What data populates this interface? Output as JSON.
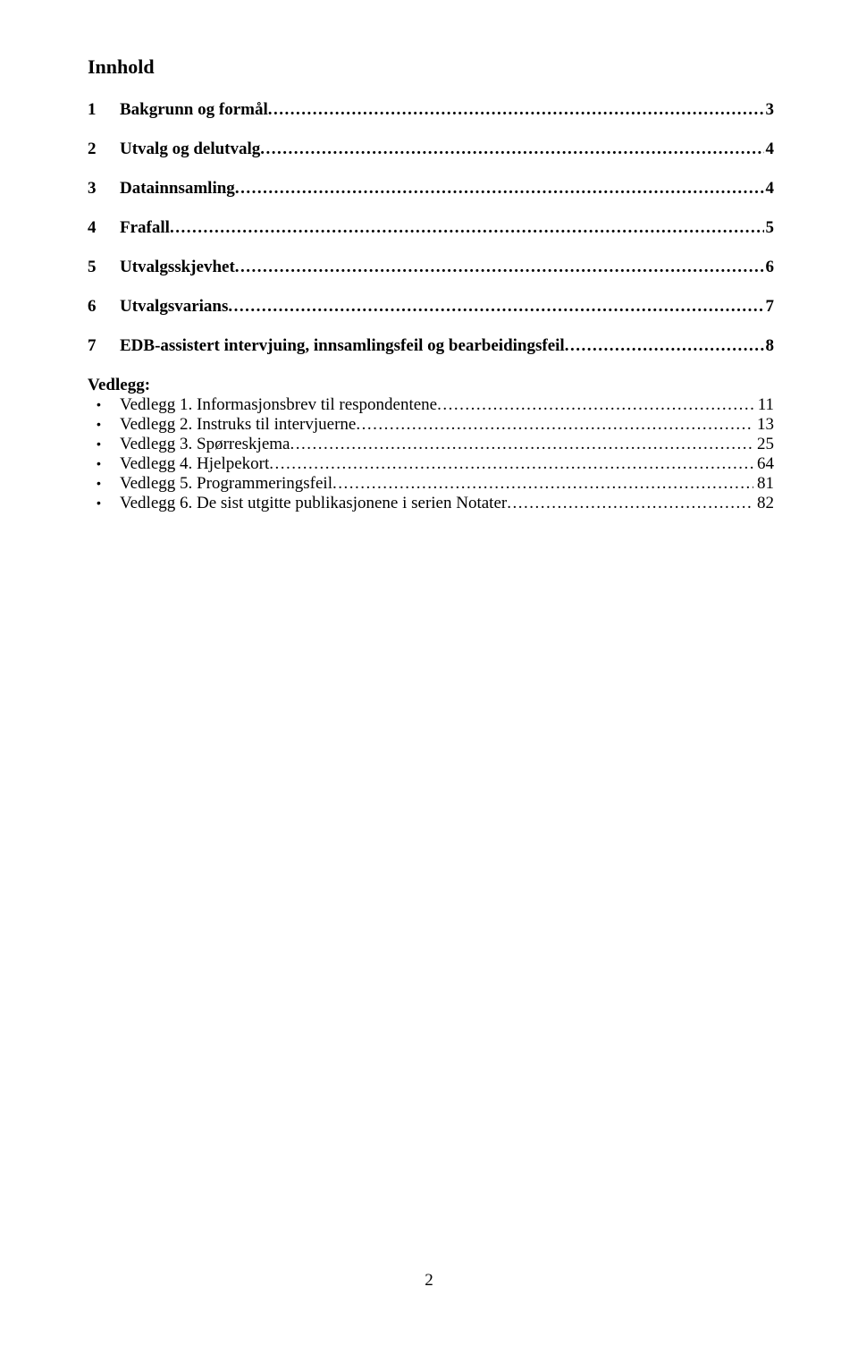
{
  "title": "Innhold",
  "sections": [
    {
      "num": "1",
      "label": "Bakgrunn og formål",
      "page": "3"
    },
    {
      "num": "2",
      "label": "Utvalg og delutvalg",
      "page": "4"
    },
    {
      "num": "3",
      "label": "Datainnsamling",
      "page": "4"
    },
    {
      "num": "4",
      "label": "Frafall",
      "page": "5"
    },
    {
      "num": "5",
      "label": "Utvalgsskjevhet",
      "page": "6"
    },
    {
      "num": "6",
      "label": "Utvalgsvarians",
      "page": "7"
    },
    {
      "num": "7",
      "label": "EDB-assistert intervjuing, innsamlingsfeil og bearbeidingsfeil",
      "page": "8"
    }
  ],
  "vedlegg_heading": "Vedlegg:",
  "vedlegg": [
    {
      "label": "Vedlegg 1. Informasjonsbrev til respondentene",
      "page": "11"
    },
    {
      "label": "Vedlegg 2. Instruks til intervjuerne",
      "page": "13"
    },
    {
      "label": "Vedlegg 3. Spørreskjema",
      "page": "25"
    },
    {
      "label": "Vedlegg 4. Hjelpekort",
      "page": "64"
    },
    {
      "label": "Vedlegg 5. Programmeringsfeil",
      "page": "81"
    },
    {
      "label": "Vedlegg 6. De sist utgitte publikasjonene i serien Notater",
      "page": "82"
    }
  ],
  "page_number": "2",
  "bullet_glyph": "•"
}
